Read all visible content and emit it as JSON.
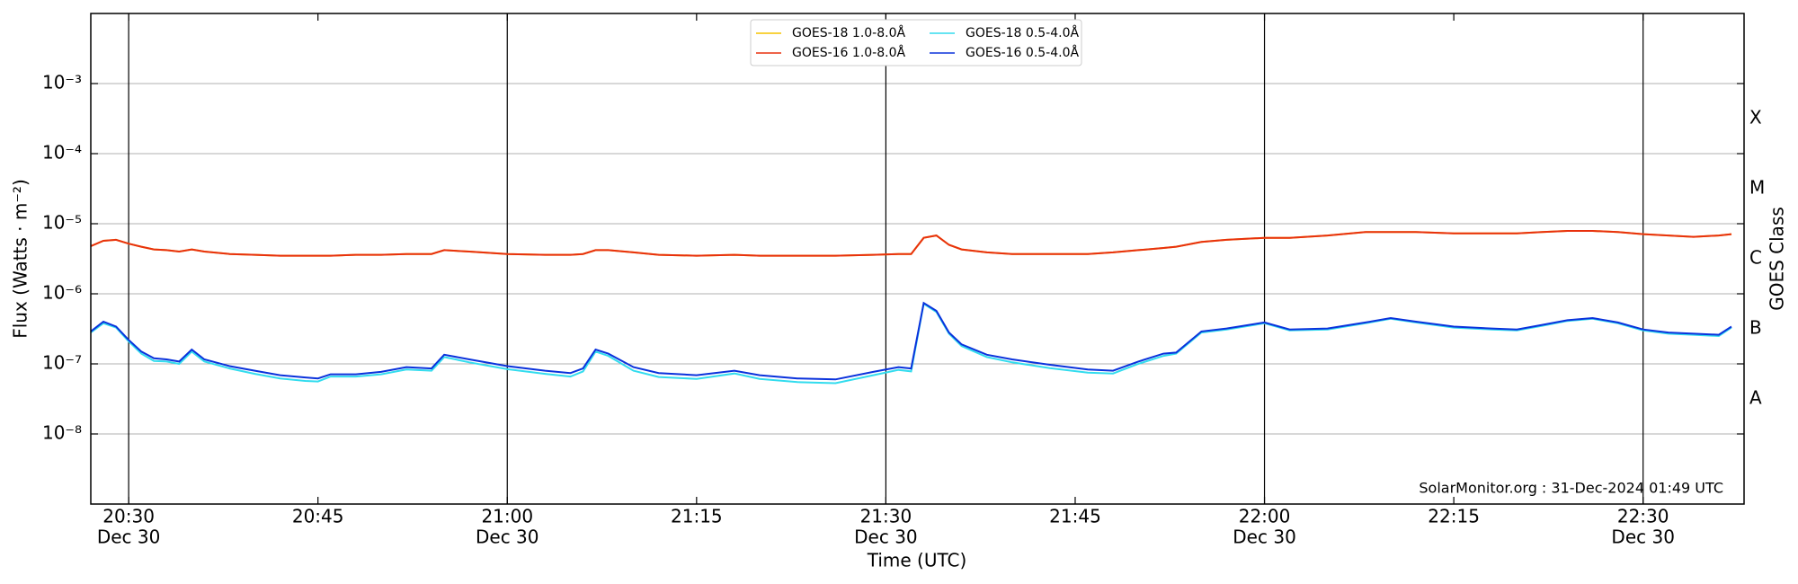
{
  "chart_data": {
    "type": "line",
    "xlabel": "Time (UTC)",
    "ylabel": "Flux (Watts · m⁻²)",
    "y2label": "GOES Class",
    "annotation": "SolarMonitor.org : 31-Dec-2024 01:49 UTC",
    "ylog": true,
    "grid": true,
    "legend": "upper center",
    "xlim": [
      "20:27",
      "22:38"
    ],
    "xticks": [
      {
        "value": "20:30",
        "label": "20:30",
        "date": "Dec 30"
      },
      "20:45",
      {
        "value": "21:00",
        "label": "21:00",
        "date": "Dec 30"
      },
      "21:15",
      {
        "value": "21:30",
        "label": "21:30",
        "date": "Dec 30"
      },
      "21:45",
      {
        "value": "22:00",
        "label": "22:00",
        "date": "Dec 30"
      },
      "22:15",
      {
        "value": "22:30",
        "label": "22:30",
        "date": "Dec 30"
      }
    ],
    "ylim": [
      1e-09,
      0.01
    ],
    "yticks": [
      {
        "value": 1e-08,
        "label": "10⁻⁸"
      },
      {
        "value": 1e-07,
        "label": "10⁻⁷"
      },
      {
        "value": 1e-06,
        "label": "10⁻⁶"
      },
      {
        "value": 1e-05,
        "label": "10⁻⁵"
      },
      {
        "value": 0.0001,
        "label": "10⁻⁴"
      },
      {
        "value": 0.001,
        "label": "10⁻³"
      }
    ],
    "y2lim": [
      1e-09,
      0.01
    ],
    "y2ticks": [
      {
        "value": 3.16e-08,
        "label": "A"
      },
      {
        "value": 3.16e-07,
        "label": "B"
      },
      {
        "value": 3.16e-06,
        "label": "C"
      },
      {
        "value": 3.16e-05,
        "label": "M"
      },
      {
        "value": 0.000316,
        "label": "X"
      }
    ],
    "x": [
      "20:27",
      "20:28",
      "20:29",
      "20:30",
      "20:31",
      "20:32",
      "20:33",
      "20:34",
      "20:35",
      "20:36",
      "20:38",
      "20:40",
      "20:42",
      "20:44",
      "20:45",
      "20:46",
      "20:48",
      "20:50",
      "20:52",
      "20:54",
      "20:55",
      "20:57",
      "21:00",
      "21:03",
      "21:05",
      "21:06",
      "21:07",
      "21:08",
      "21:10",
      "21:12",
      "21:15",
      "21:18",
      "21:20",
      "21:23",
      "21:26",
      "21:29",
      "21:31",
      "21:32",
      "21:33",
      "21:34",
      "21:35",
      "21:36",
      "21:38",
      "21:40",
      "21:43",
      "21:46",
      "21:48",
      "21:50",
      "21:52",
      "21:53",
      "21:55",
      "21:57",
      "22:00",
      "22:02",
      "22:05",
      "22:08",
      "22:10",
      "22:12",
      "22:15",
      "22:18",
      "22:20",
      "22:22",
      "22:24",
      "22:26",
      "22:28",
      "22:30",
      "22:32",
      "22:34",
      "22:36",
      "22:37"
    ],
    "series": [
      {
        "name": "GOES-18 1.0-8.0Å",
        "color": "#f5c400",
        "values": [
          4.8e-06,
          5.7e-06,
          5.9e-06,
          5.2e-06,
          4.7e-06,
          4.3e-06,
          4.2e-06,
          4e-06,
          4.3e-06,
          4e-06,
          3.7e-06,
          3.6e-06,
          3.5e-06,
          3.5e-06,
          3.5e-06,
          3.5e-06,
          3.6e-06,
          3.6e-06,
          3.7e-06,
          3.7e-06,
          4.2e-06,
          4e-06,
          3.7e-06,
          3.6e-06,
          3.6e-06,
          3.7e-06,
          4.2e-06,
          4.2e-06,
          3.9e-06,
          3.6e-06,
          3.5e-06,
          3.6e-06,
          3.5e-06,
          3.5e-06,
          3.5e-06,
          3.6e-06,
          3.7e-06,
          3.7e-06,
          6.3e-06,
          6.8e-06,
          5e-06,
          4.3e-06,
          3.9e-06,
          3.7e-06,
          3.7e-06,
          3.7e-06,
          3.9e-06,
          4.2e-06,
          4.5e-06,
          4.7e-06,
          5.5e-06,
          5.9e-06,
          6.3e-06,
          6.3e-06,
          6.8e-06,
          7.6e-06,
          7.6e-06,
          7.6e-06,
          7.3e-06,
          7.3e-06,
          7.3e-06,
          7.6e-06,
          7.9e-06,
          7.9e-06,
          7.6e-06,
          7.1e-06,
          6.8e-06,
          6.5e-06,
          6.8e-06,
          7.1e-06
        ]
      },
      {
        "name": "GOES-16 1.0-8.0Å",
        "color": "#e8300e",
        "values": [
          4.8e-06,
          5.7e-06,
          5.9e-06,
          5.2e-06,
          4.7e-06,
          4.3e-06,
          4.2e-06,
          4e-06,
          4.3e-06,
          4e-06,
          3.7e-06,
          3.6e-06,
          3.5e-06,
          3.5e-06,
          3.5e-06,
          3.5e-06,
          3.6e-06,
          3.6e-06,
          3.7e-06,
          3.7e-06,
          4.2e-06,
          4e-06,
          3.7e-06,
          3.6e-06,
          3.6e-06,
          3.7e-06,
          4.2e-06,
          4.2e-06,
          3.9e-06,
          3.6e-06,
          3.5e-06,
          3.6e-06,
          3.5e-06,
          3.5e-06,
          3.5e-06,
          3.6e-06,
          3.7e-06,
          3.7e-06,
          6.3e-06,
          6.8e-06,
          5e-06,
          4.3e-06,
          3.9e-06,
          3.7e-06,
          3.7e-06,
          3.7e-06,
          3.9e-06,
          4.2e-06,
          4.5e-06,
          4.7e-06,
          5.5e-06,
          5.9e-06,
          6.3e-06,
          6.3e-06,
          6.8e-06,
          7.6e-06,
          7.6e-06,
          7.6e-06,
          7.3e-06,
          7.3e-06,
          7.3e-06,
          7.6e-06,
          7.9e-06,
          7.9e-06,
          7.6e-06,
          7.1e-06,
          6.8e-06,
          6.5e-06,
          6.8e-06,
          7.1e-06
        ]
      },
      {
        "name": "GOES-18 0.5-4.0Å",
        "color": "#33dcee",
        "values": [
          2.8e-07,
          3.8e-07,
          3.3e-07,
          2.1e-07,
          1.4e-07,
          1.1e-07,
          1.08e-07,
          1e-07,
          1.5e-07,
          1.08e-07,
          8.6e-08,
          7.2e-08,
          6.2e-08,
          5.7e-08,
          5.6e-08,
          6.6e-08,
          6.6e-08,
          7.1e-08,
          8.3e-08,
          8e-08,
          1.25e-07,
          1.05e-07,
          8.4e-08,
          7.2e-08,
          6.6e-08,
          7.8e-08,
          1.5e-07,
          1.3e-07,
          8e-08,
          6.5e-08,
          6.1e-08,
          7.3e-08,
          6.1e-08,
          5.5e-08,
          5.3e-08,
          6.9e-08,
          8.2e-08,
          7.8e-08,
          7.2e-07,
          5.5e-07,
          2.7e-07,
          1.8e-07,
          1.25e-07,
          1.05e-07,
          8.7e-08,
          7.5e-08,
          7.3e-08,
          1e-07,
          1.3e-07,
          1.4e-07,
          2.8e-07,
          3.1e-07,
          3.8e-07,
          3e-07,
          3.1e-07,
          3.8e-07,
          4.4e-07,
          3.9e-07,
          3.3e-07,
          3.1e-07,
          3e-07,
          3.5e-07,
          4.1e-07,
          4.4e-07,
          3.8e-07,
          3e-07,
          2.7e-07,
          2.6e-07,
          2.5e-07,
          3.3e-07
        ]
      },
      {
        "name": "GOES-16 0.5-4.0Å",
        "color": "#0a32dc",
        "values": [
          2.9e-07,
          4e-07,
          3.4e-07,
          2.2e-07,
          1.5e-07,
          1.2e-07,
          1.16e-07,
          1.08e-07,
          1.6e-07,
          1.16e-07,
          9.3e-08,
          8e-08,
          6.9e-08,
          6.4e-08,
          6.2e-08,
          7.1e-08,
          7.1e-08,
          7.7e-08,
          9e-08,
          8.6e-08,
          1.35e-07,
          1.16e-07,
          9.3e-08,
          8e-08,
          7.4e-08,
          8.6e-08,
          1.6e-07,
          1.4e-07,
          9e-08,
          7.4e-08,
          6.9e-08,
          8e-08,
          6.9e-08,
          6.2e-08,
          6e-08,
          7.7e-08,
          9e-08,
          8.6e-08,
          7.4e-07,
          5.7e-07,
          2.8e-07,
          1.9e-07,
          1.35e-07,
          1.16e-07,
          9.7e-08,
          8.3e-08,
          8e-08,
          1.08e-07,
          1.4e-07,
          1.45e-07,
          2.9e-07,
          3.2e-07,
          3.9e-07,
          3.1e-07,
          3.2e-07,
          3.9e-07,
          4.5e-07,
          4e-07,
          3.4e-07,
          3.2e-07,
          3.1e-07,
          3.6e-07,
          4.2e-07,
          4.5e-07,
          3.9e-07,
          3.1e-07,
          2.8e-07,
          2.7e-07,
          2.6e-07,
          3.4e-07
        ]
      }
    ]
  }
}
